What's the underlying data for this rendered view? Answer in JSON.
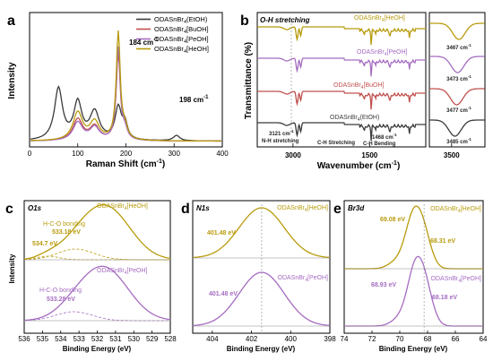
{
  "colors": {
    "black": "#3a3a3a",
    "bu": "#c0504d",
    "pe": "#a56cc1",
    "he": "#b89b0c"
  },
  "chart_data": [
    {
      "id": "a",
      "panel_label": "a",
      "type": "line",
      "xlabel": "Raman Shift (cm",
      "xlabel_sup": "-1",
      "xlabel_end": ")",
      "ylabel": "Intensity",
      "xlim": [
        0,
        400
      ],
      "xticks": [
        "0",
        "100",
        "200",
        "300",
        "400"
      ],
      "legend": [
        {
          "pre": "ODASnBr",
          "sub": "4",
          "post": "(EtOH)",
          "color_key": "black"
        },
        {
          "pre": "ODASnBr",
          "sub": "4",
          "post": "[BuOH]",
          "color_key": "bu"
        },
        {
          "pre": "ODASnBr",
          "sub": "4",
          "post": "[PeOH]",
          "color_key": "pe"
        },
        {
          "pre": "ODASnBr",
          "sub": "4",
          "post": "[HeOH]",
          "color_key": "he"
        }
      ],
      "annotations": [
        {
          "text": "184 cm",
          "sup": "-1"
        },
        {
          "text": "198 cm",
          "sup": "-1"
        }
      ],
      "series": [
        {
          "name": "ODASnBr4(EtOH)",
          "color_key": "black",
          "peaks": [
            [
              60,
              0.48,
              10
            ],
            [
              100,
              0.34,
              10
            ],
            [
              135,
              0.26,
              12
            ],
            [
              184,
              0.3,
              8
            ],
            [
              198,
              0.14,
              6
            ],
            [
              305,
              0.05,
              8
            ]
          ]
        },
        {
          "name": "ODASnBr4[BuOH]",
          "color_key": "bu",
          "peaks": [
            [
              100,
              0.2,
              12
            ],
            [
              135,
              0.13,
              12
            ],
            [
              184,
              0.8,
              5
            ],
            [
              198,
              0.1,
              6
            ]
          ]
        },
        {
          "name": "ODASnBr4[PeOH]",
          "color_key": "pe",
          "peaks": [
            [
              100,
              0.17,
              12
            ],
            [
              135,
              0.12,
              12
            ],
            [
              184,
              0.86,
              5
            ],
            [
              198,
              0.08,
              6
            ]
          ]
        },
        {
          "name": "ODASnBr4[HeOH]",
          "color_key": "he",
          "peaks": [
            [
              100,
              0.26,
              12
            ],
            [
              135,
              0.17,
              12
            ],
            [
              184,
              1.0,
              5
            ],
            [
              198,
              0.1,
              6
            ]
          ]
        }
      ]
    },
    {
      "id": "b",
      "panel_label": "b",
      "type": "line",
      "xlabel": "Wavenumber (cm",
      "xlabel_sup": "-1",
      "xlabel_end": ")",
      "ylabel": "Transmittance (%)",
      "xlim": [
        3700,
        400
      ],
      "xticks": [
        "3000",
        "1500"
      ],
      "xticks_values": [
        3000,
        1500
      ],
      "inset_xlim": [
        3600,
        3350
      ],
      "inset_xticks": [
        "3500"
      ],
      "annotations": {
        "oh": "O-H stretching",
        "nh_val": "3121 cm",
        "nh_sup": "-1",
        "nh": "N-H stretching",
        "ch": "C-H Stretching",
        "bend_val": "1468 cm",
        "bend_sup": "-1",
        "bend": "C-H Bending"
      },
      "series_labels": [
        {
          "pre": "ODASnBr",
          "sub": "4",
          "post": "[HeOH]",
          "color_key": "he"
        },
        {
          "pre": "ODASnBr",
          "sub": "4",
          "post": "[PeOH]",
          "color_key": "pe"
        },
        {
          "pre": "ODASnBr",
          "sub": "4",
          "post": "[BuOH]",
          "color_key": "bu"
        },
        {
          "pre": "ODASnBr",
          "sub": "4",
          "post": "(EtOH)",
          "color_key": "black"
        }
      ],
      "inset_peaks": [
        {
          "val": "3467 cm",
          "sup": "-1",
          "x": 3467
        },
        {
          "val": "3473 cm",
          "sup": "-1",
          "x": 3473
        },
        {
          "val": "3477 cm",
          "sup": "-1",
          "x": 3477
        },
        {
          "val": "3485 cm",
          "sup": "-1",
          "x": 3485
        }
      ]
    },
    {
      "id": "c",
      "panel_label": "c",
      "type": "line",
      "title": "O1s",
      "xlabel": "Binding Energy (eV)",
      "ylabel": "Intensity",
      "xlim": [
        536,
        528
      ],
      "xticks": [
        "536",
        "535",
        "534",
        "533",
        "532",
        "531",
        "530",
        "529",
        "528"
      ],
      "top": {
        "label_pre": "ODASnBr",
        "label_sub": "4",
        "label_post": "[HeOH]",
        "color_key": "he",
        "peak_text": "H-C-O bonding",
        "peak_val": "533.18 eV",
        "side_val": "534.7 eV"
      },
      "bottom": {
        "label_pre": "ODASnBr",
        "label_sub": "4",
        "label_post": "[PeOH]",
        "color_key": "pe",
        "peak_text": "H-C-O bonding",
        "peak_val": "533.28 eV"
      }
    },
    {
      "id": "d",
      "panel_label": "d",
      "type": "line",
      "title": "N1s",
      "xlabel": "Binding Energy (eV)",
      "xlim": [
        405,
        398
      ],
      "xticks": [
        "404",
        "402",
        "400",
        "398"
      ],
      "top": {
        "label_pre": "ODASnBr",
        "label_sub": "4",
        "label_post": "[HeOH]",
        "color_key": "he",
        "peak_val": "401.48 eV"
      },
      "bottom": {
        "label_pre": "ODASnBr",
        "label_sub": "4",
        "label_post": "[PeOH]",
        "color_key": "pe",
        "peak_val": "401.48 eV"
      }
    },
    {
      "id": "e",
      "panel_label": "e",
      "type": "line",
      "title": "Br3d",
      "xlabel": "Binding Energy (eV)",
      "xlim": [
        74,
        64
      ],
      "xticks": [
        "74",
        "72",
        "70",
        "68",
        "66",
        "64"
      ],
      "top": {
        "label_pre": "ODASnBr",
        "label_sub": "4",
        "label_post": "[HeOH]",
        "color_key": "he",
        "peak1_val": "69.08 eV",
        "peak2_val": "68.31 eV"
      },
      "bottom": {
        "label_pre": "ODASnBr",
        "label_sub": "4",
        "label_post": "[PeOH]",
        "color_key": "pe",
        "peak1_val": "68.93 eV",
        "peak2_val": "68.18 eV"
      }
    }
  ]
}
